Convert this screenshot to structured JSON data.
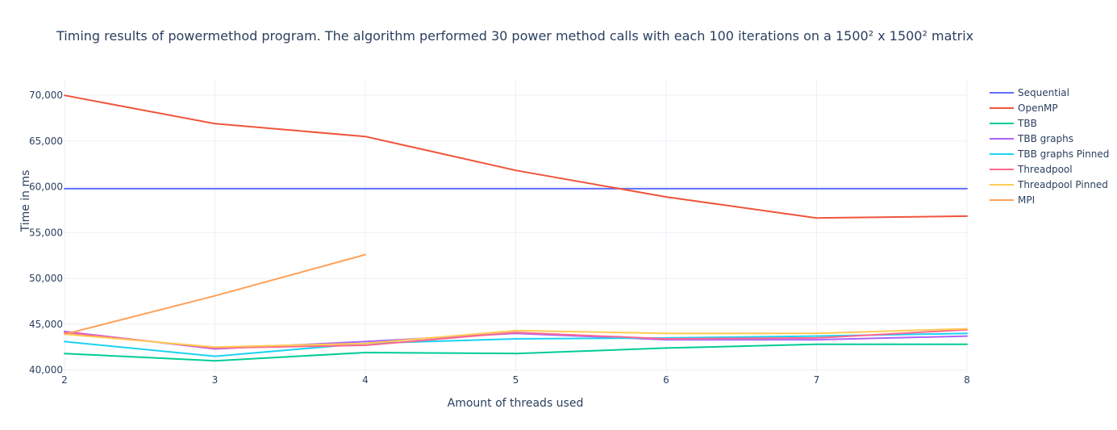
{
  "chart_data": {
    "type": "line",
    "title": "Timing results of powermethod program. The algorithm performed 30 power method calls with each 100 iterations on a 1500² x 1500² matrix",
    "xlabel": "Amount of threads used",
    "ylabel": "Time in ms",
    "x": [
      2,
      3,
      4,
      5,
      6,
      7,
      8
    ],
    "xlim": [
      2,
      8
    ],
    "ylim": [
      39700,
      71600
    ],
    "yticks": [
      40000,
      45000,
      50000,
      55000,
      60000,
      65000,
      70000
    ],
    "ytick_labels": [
      "40,000",
      "45,000",
      "50,000",
      "55,000",
      "60,000",
      "65,000",
      "70,000"
    ],
    "xtick_labels": [
      "2",
      "3",
      "4",
      "5",
      "6",
      "7",
      "8"
    ],
    "grid": true,
    "legend_position": "right",
    "series": [
      {
        "name": "Sequential",
        "color": "#636efa",
        "x": [
          2,
          3,
          4,
          5,
          6,
          7,
          8
        ],
        "values": [
          59800,
          59800,
          59800,
          59800,
          59800,
          59800,
          59800
        ]
      },
      {
        "name": "OpenMP",
        "color": "#ef553b",
        "x": [
          2,
          3,
          4,
          5,
          6,
          7,
          8
        ],
        "values": [
          70000,
          66900,
          65500,
          61800,
          58900,
          56600,
          56800
        ]
      },
      {
        "name": "TBB",
        "color": "#00cc96",
        "x": [
          2,
          3,
          4,
          5,
          6,
          7,
          8
        ],
        "values": [
          41800,
          41000,
          41900,
          41800,
          42400,
          42800,
          42800
        ]
      },
      {
        "name": "TBB graphs",
        "color": "#ab63fa",
        "x": [
          2,
          3,
          4,
          5,
          6,
          7,
          8
        ],
        "values": [
          44200,
          42300,
          43100,
          44000,
          43300,
          43300,
          43700
        ]
      },
      {
        "name": "TBB graphs Pinned",
        "color": "#19d3f3",
        "x": [
          2,
          3,
          4,
          5,
          6,
          7,
          8
        ],
        "values": [
          43100,
          41500,
          42900,
          43400,
          43500,
          43700,
          44000
        ]
      },
      {
        "name": "Threadpool",
        "color": "#ff6692",
        "x": [
          2,
          3,
          4,
          5,
          6,
          7,
          8
        ],
        "values": [
          44100,
          42400,
          42700,
          44100,
          43400,
          43500,
          44400
        ]
      },
      {
        "name": "Threadpool Pinned",
        "color": "#fecb52",
        "x": [
          2,
          3,
          4,
          5,
          6,
          7,
          8
        ],
        "values": [
          43900,
          42500,
          42900,
          44300,
          44000,
          44000,
          44500
        ]
      },
      {
        "name": "MPI",
        "color": "#ffa15a",
        "x": [
          2,
          3,
          4
        ],
        "values": [
          43900,
          48100,
          52600
        ]
      }
    ]
  }
}
